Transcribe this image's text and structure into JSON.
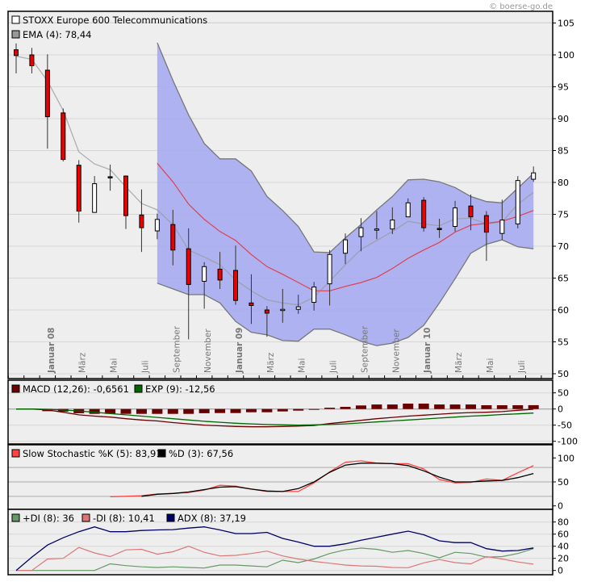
{
  "watermark": "© boerse-go.de",
  "colors": {
    "plot_bg": "#eeeeee",
    "band": "#a6abf0",
    "band_edge": "#777777",
    "mid_line": "#e0404f",
    "ema": "#999999",
    "down": "#ee0000",
    "up": "#ffffff",
    "macd": "#6b0000",
    "signal": "#006600",
    "k": "#ff4444",
    "d": "#000000",
    "pdi": "#669966",
    "mdi": "#dd7777",
    "adx": "#000066"
  },
  "chart_data": [
    {
      "type": "candlestick",
      "legend": [
        {
          "label": "STOXX Europe 600 Telecommunications",
          "color": "#ffffff"
        },
        {
          "label": "EMA (4): 78,44",
          "color": "#999999"
        }
      ],
      "x_labels": [
        {
          "i": 2,
          "text": "Januar 08",
          "bold": true
        },
        {
          "i": 4,
          "text": "März",
          "bold": false
        },
        {
          "i": 6,
          "text": "Mai",
          "bold": false
        },
        {
          "i": 8,
          "text": "Juli",
          "bold": false
        },
        {
          "i": 10,
          "text": "September",
          "bold": false
        },
        {
          "i": 12,
          "text": "November",
          "bold": false
        },
        {
          "i": 14,
          "text": "Januar 09",
          "bold": true
        },
        {
          "i": 16,
          "text": "März",
          "bold": false
        },
        {
          "i": 18,
          "text": "Mai",
          "bold": false
        },
        {
          "i": 20,
          "text": "Juli",
          "bold": false
        },
        {
          "i": 22,
          "text": "September",
          "bold": false
        },
        {
          "i": 24,
          "text": "November",
          "bold": false
        },
        {
          "i": 26,
          "text": "Januar 10",
          "bold": true
        },
        {
          "i": 28,
          "text": "März",
          "bold": false
        },
        {
          "i": 30,
          "text": "Mai",
          "bold": false
        },
        {
          "i": 32,
          "text": "Juli",
          "bold": false
        }
      ],
      "ylim": [
        50,
        105
      ],
      "yticks": [
        50,
        55,
        60,
        65,
        70,
        75,
        80,
        85,
        90,
        95,
        100,
        105
      ],
      "ohlc": [
        [
          100.8,
          101.8,
          97.1,
          99.9
        ],
        [
          100.0,
          101.1,
          97.1,
          98.3
        ],
        [
          97.6,
          100.1,
          85.3,
          90.3
        ],
        [
          90.9,
          91.6,
          83.3,
          83.6
        ],
        [
          82.7,
          83.5,
          73.7,
          75.5
        ],
        [
          75.3,
          81.0,
          75.3,
          79.8
        ],
        [
          80.9,
          82.8,
          78.7,
          80.7
        ],
        [
          81.0,
          81.1,
          72.7,
          74.8
        ],
        [
          74.9,
          78.9,
          69.1,
          72.9
        ],
        [
          72.4,
          75.1,
          71.1,
          74.2
        ],
        [
          73.4,
          75.7,
          67.0,
          69.4
        ],
        [
          69.6,
          72.8,
          55.4,
          64.0
        ],
        [
          64.5,
          67.5,
          60.2,
          66.8
        ],
        [
          66.4,
          69.1,
          63.3,
          64.7
        ],
        [
          66.2,
          70.1,
          60.8,
          61.5
        ],
        [
          61.1,
          65.6,
          57.8,
          60.7
        ],
        [
          60.0,
          60.6,
          55.8,
          59.5
        ],
        [
          60.1,
          63.3,
          58.0,
          60.1
        ],
        [
          60.1,
          62.4,
          59.4,
          60.5
        ],
        [
          61.2,
          64.4,
          59.9,
          63.6
        ],
        [
          64.1,
          69.4,
          60.7,
          68.7
        ],
        [
          68.9,
          72.0,
          67.2,
          71.0
        ],
        [
          71.5,
          74.4,
          69.2,
          72.9
        ],
        [
          72.6,
          75.5,
          71.1,
          72.7
        ],
        [
          72.7,
          76.1,
          71.9,
          74.1
        ],
        [
          74.6,
          77.5,
          74.6,
          76.8
        ],
        [
          77.2,
          77.7,
          72.3,
          72.9
        ],
        [
          72.8,
          74.3,
          71.3,
          72.6
        ],
        [
          73.1,
          77.1,
          72.3,
          76.0
        ],
        [
          76.3,
          78.1,
          72.5,
          74.6
        ],
        [
          74.8,
          75.5,
          67.7,
          72.2
        ],
        [
          72.0,
          77.3,
          71.0,
          74.1
        ],
        [
          73.5,
          81.0,
          72.8,
          80.3
        ],
        [
          80.5,
          82.5,
          80.1,
          81.5
        ]
      ],
      "ema4": [
        99.8,
        99.3,
        95.9,
        91.3,
        84.8,
        82.9,
        82.0,
        79.3,
        76.7,
        75.7,
        73.4,
        69.4,
        68.3,
        67.1,
        64.7,
        63.0,
        61.6,
        61.1,
        60.8,
        62.0,
        64.5,
        67.1,
        69.5,
        70.9,
        72.3,
        73.9,
        73.5,
        73.2,
        74.3,
        74.4,
        73.5,
        73.8,
        76.6,
        78.44
      ],
      "band_start": 9,
      "band_mid": [
        83.0,
        80.1,
        76.6,
        74.2,
        72.3,
        70.9,
        68.7,
        66.8,
        65.6,
        64.3,
        63.0,
        63.0,
        63.7,
        64.3,
        65.1,
        66.5,
        68.1,
        69.4,
        70.6,
        72.2,
        73.3,
        73.6,
        73.9,
        74.7,
        75.6
      ],
      "band_upper": [
        101.9,
        96.0,
        90.6,
        86.1,
        83.7,
        83.7,
        81.8,
        77.8,
        75.6,
        73.1,
        69.1,
        69.0,
        71.3,
        73.4,
        75.7,
        77.8,
        80.4,
        80.5,
        80.1,
        79.2,
        77.8,
        77.0,
        76.8,
        79.1,
        81.4
      ],
      "band_lower": [
        64.2,
        63.3,
        62.4,
        62.4,
        61.1,
        58.2,
        56.5,
        56.1,
        55.2,
        55.1,
        57.0,
        57.0,
        56.1,
        55.1,
        54.4,
        54.8,
        55.7,
        57.6,
        61.1,
        64.9,
        68.9,
        70.3,
        71.0,
        69.9,
        69.6
      ]
    },
    {
      "type": "bar+line",
      "legend": [
        {
          "label": "MACD (12,26): -0,6561",
          "color": "#6b0000"
        },
        {
          "label": "EXP (9): -12,56",
          "color": "#006600"
        }
      ],
      "ylim": [
        -100,
        50
      ],
      "yticks": [
        50,
        0,
        -50,
        -100
      ],
      "hist_start": 2,
      "histogram": [
        -6.7,
        -8,
        -13,
        -15,
        -15,
        -15,
        -15,
        -15,
        -15,
        -15,
        -13,
        -12.5,
        -12.5,
        -10,
        -10,
        -7.5,
        -5,
        -2.5,
        4,
        6.7,
        11,
        14,
        14,
        16.7,
        16.7,
        14,
        14,
        14,
        11.7,
        11.7,
        11.7,
        11.9
      ],
      "macd": [
        0,
        0,
        -3,
        -10,
        -18,
        -22,
        -25,
        -30,
        -34,
        -37,
        -42,
        -46,
        -50,
        -52,
        -54,
        -55,
        -55,
        -54,
        -53,
        -51,
        -45,
        -40,
        -35,
        -30,
        -26,
        -22,
        -19,
        -16,
        -13,
        -11,
        -10,
        -8,
        -4,
        -0.66
      ],
      "signal": [
        0,
        0,
        -1,
        -3,
        -6,
        -10,
        -14,
        -18,
        -22,
        -26,
        -30,
        -34,
        -38,
        -41,
        -44,
        -46,
        -48,
        -49,
        -50,
        -49,
        -48,
        -46,
        -43,
        -40,
        -37,
        -34,
        -31,
        -28,
        -25,
        -22,
        -20,
        -17,
        -15,
        -12.56
      ]
    },
    {
      "type": "line",
      "legend": [
        {
          "label": "Slow Stochastic %K (5): 83,91",
          "color": "#ff4444"
        },
        {
          "label": "%D (3): 67,56",
          "color": "#000000"
        }
      ],
      "ylim": [
        0,
        100
      ],
      "yticks": [
        0,
        50,
        100
      ],
      "gridlines": [
        20,
        50,
        80
      ],
      "k_start": 6,
      "k": [
        19,
        20,
        21,
        25,
        26,
        28,
        33,
        43,
        41,
        35,
        30,
        30,
        30,
        48,
        71,
        91,
        94,
        89,
        88,
        88,
        77,
        55,
        48,
        49,
        56,
        53,
        69,
        83.91
      ],
      "d_start": 8,
      "d": [
        20,
        24,
        26,
        29,
        34,
        39,
        40,
        35,
        31,
        30,
        36,
        50,
        70,
        85,
        89,
        89,
        88,
        84,
        73,
        60,
        50,
        50,
        52,
        53,
        59,
        67.56
      ]
    },
    {
      "type": "line",
      "legend": [
        {
          "label": "+DI (8): 36",
          "color": "#669966"
        },
        {
          "label": "-DI (8): 10,41",
          "color": "#dd7777"
        },
        {
          "label": "ADX (8): 37,19",
          "color": "#000066"
        }
      ],
      "ylim": [
        0,
        90
      ],
      "yticks": [
        0,
        20,
        40,
        60,
        80
      ],
      "pdi": [
        0,
        0,
        0,
        0,
        0,
        0,
        11,
        8,
        6,
        5,
        6,
        5,
        4,
        9,
        9,
        7.5,
        6,
        17,
        13,
        19,
        28,
        34,
        37,
        35,
        30,
        33,
        28,
        21,
        30,
        28,
        22,
        23,
        28,
        36
      ],
      "mdi": [
        0,
        0,
        19,
        20,
        38,
        29,
        23,
        34,
        35,
        27,
        31,
        40,
        30,
        24,
        25,
        28,
        32,
        24,
        19,
        15,
        12,
        9,
        7.5,
        7,
        5,
        4.5,
        12.5,
        18,
        13,
        11,
        23,
        19,
        14,
        10.41
      ],
      "adx": [
        0,
        22,
        42,
        54,
        64,
        72,
        64,
        64,
        66,
        67,
        67.5,
        70,
        72,
        67,
        61,
        61,
        63,
        53,
        47,
        40,
        40,
        44,
        50,
        55,
        60,
        65,
        59,
        49,
        46,
        46,
        36,
        32,
        33,
        37.19
      ]
    }
  ]
}
